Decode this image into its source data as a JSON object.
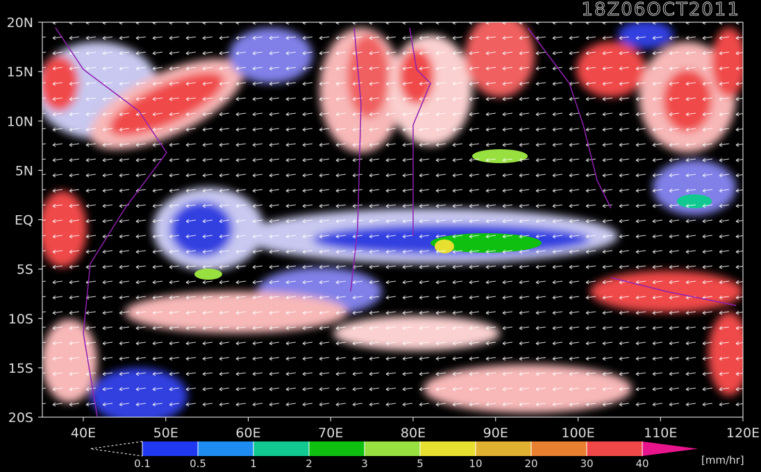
{
  "title": "18Z06OCT2011",
  "lat_labels": [
    "20N",
    "15N",
    "10N",
    "5N",
    "EQ",
    "5S",
    "10S",
    "15S",
    "20S"
  ],
  "lon_labels": [
    "40E",
    "50E",
    "60E",
    "70E",
    "80E",
    "90E",
    "100E",
    "110E",
    "120E"
  ],
  "colorbar": {
    "labels": [
      "0.1",
      "0.5",
      "1",
      "2",
      "3",
      "5",
      "10",
      "20",
      "30",
      "40"
    ],
    "colors": [
      "#2038f0",
      "#1e8cf0",
      "#10c890",
      "#10c010",
      "#98e040",
      "#e8e030",
      "#e0b030",
      "#e88030",
      "#f04848",
      "#e8148c"
    ],
    "unit": "[mm/hr]"
  }
}
